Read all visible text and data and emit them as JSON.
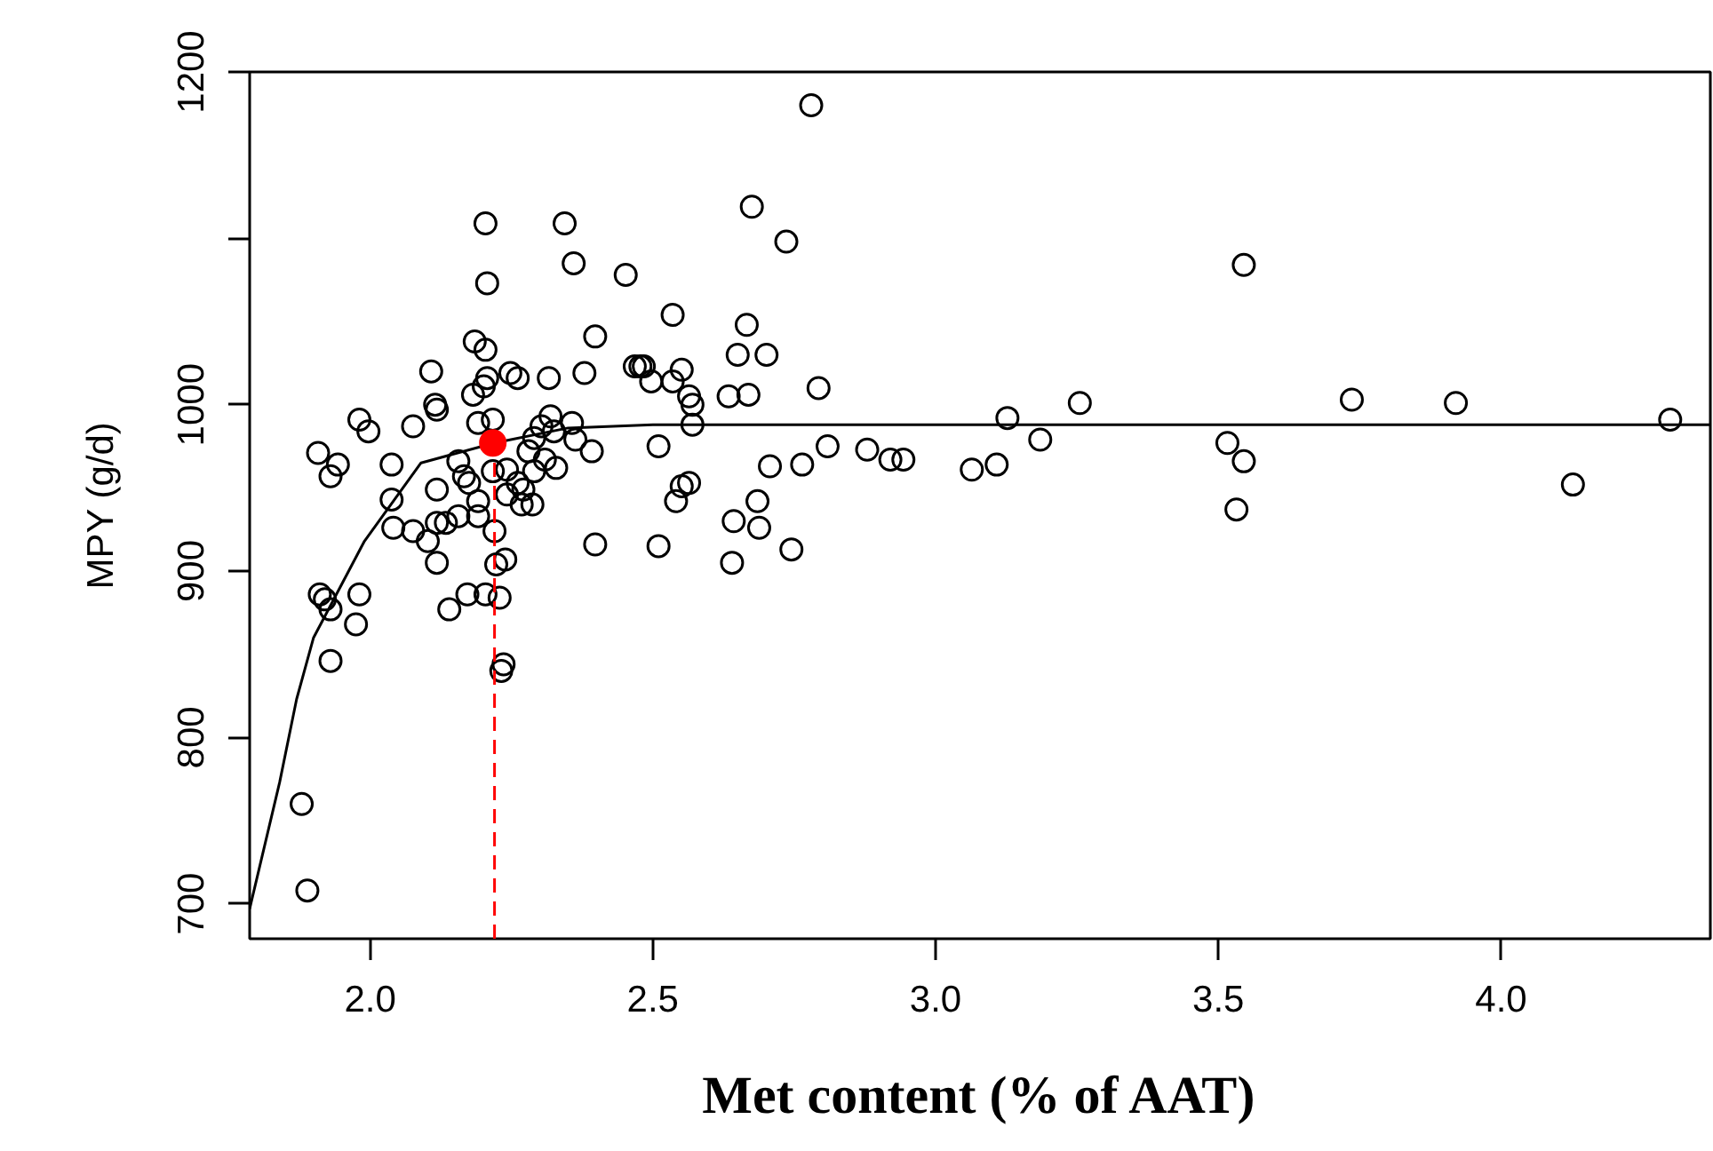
{
  "chart_data": {
    "type": "scatter",
    "xlabel": "Met content (% of AAT)",
    "ylabel": "MPY (g/d)",
    "xlim": [
      1.787,
      4.37
    ],
    "ylim": [
      679,
      1200
    ],
    "xticks": [
      {
        "value": 2.0,
        "label": "2.0"
      },
      {
        "value": 2.5,
        "label": "2.5"
      },
      {
        "value": 3.0,
        "label": "3.0"
      },
      {
        "value": 3.5,
        "label": "3.5"
      },
      {
        "value": 4.0,
        "label": "4.0"
      }
    ],
    "yticks": [
      700,
      800,
      900,
      1000,
      {
        "value": 1100,
        "label": null
      },
      1200
    ],
    "grid": false,
    "series": [
      {
        "marker": "circle",
        "color": "#000000",
        "x": [
          1.879,
          1.889,
          1.908,
          1.911,
          1.92,
          1.93,
          1.93,
          1.93,
          1.943,
          1.981,
          1.975,
          1.981,
          1.997,
          2.038,
          2.038,
          2.041,
          2.076,
          2.076,
          2.102,
          2.108,
          2.115,
          2.118,
          2.118,
          2.118,
          2.118,
          2.134,
          2.14,
          2.156,
          2.156,
          2.166,
          2.172,
          2.175,
          2.191,
          2.191,
          2.204,
          2.185,
          2.182,
          2.201,
          2.191,
          2.204,
          2.207,
          2.204,
          2.207,
          2.217,
          2.217,
          2.22,
          2.223,
          2.229,
          2.232,
          2.236,
          2.239,
          2.242,
          2.242,
          2.261,
          2.248,
          2.261,
          2.268,
          2.271,
          2.28,
          2.287,
          2.29,
          2.29,
          2.303,
          2.309,
          2.316,
          2.319,
          2.329,
          2.325,
          2.344,
          2.36,
          2.357,
          2.363,
          2.379,
          2.392,
          2.398,
          2.398,
          2.452,
          2.468,
          2.478,
          2.484,
          2.497,
          2.51,
          2.51,
          2.535,
          2.535,
          2.541,
          2.551,
          2.551,
          2.564,
          2.564,
          2.57,
          2.57,
          2.634,
          2.64,
          2.643,
          2.65,
          2.666,
          2.669,
          2.675,
          2.685,
          2.688,
          2.701,
          2.707,
          2.736,
          2.745,
          2.764,
          2.78,
          2.793,
          2.809,
          2.879,
          2.92,
          2.943,
          3.064,
          3.108,
          3.127,
          3.185,
          3.255,
          3.516,
          3.532,
          3.545,
          3.545,
          3.736,
          3.92,
          4.127,
          4.299
        ],
        "values": [
          760,
          708,
          971,
          886,
          883,
          877,
          846,
          957,
          964,
          886,
          868,
          991,
          984,
          964,
          943,
          926,
          987,
          924,
          918,
          1020,
          1000,
          997,
          949,
          905,
          929,
          929,
          877,
          933,
          966,
          957,
          886,
          953,
          933,
          942,
          886,
          1038,
          1006,
          1011,
          989,
          1109,
          1073,
          1033,
          1016,
          991,
          960,
          924,
          904,
          884,
          840,
          844,
          907,
          946,
          961,
          953,
          1019,
          1016,
          940,
          949,
          972,
          940,
          960,
          980,
          987,
          967,
          1016,
          993,
          962,
          984,
          1109,
          1085,
          989,
          979,
          1019,
          972,
          1041,
          916,
          1078,
          1023,
          1023,
          1023,
          1014,
          975,
          915,
          1014,
          1054,
          942,
          1021,
          951,
          953,
          1005,
          988,
          1000,
          1005,
          905,
          930,
          1030,
          1048,
          1006,
          1119,
          942,
          926,
          1030,
          963,
          1098,
          913,
          964,
          1180,
          1010,
          975,
          973,
          967,
          967,
          961,
          964,
          992,
          979,
          1001,
          977,
          937,
          966,
          1084,
          1003,
          1001,
          952,
          991
        ]
      },
      {
        "type": "line",
        "marker": "none",
        "line_style": "solid",
        "color": "#000000",
        "x": [
          1.787,
          1.84,
          1.87,
          1.9,
          1.99,
          2.09,
          2.22,
          2.35,
          2.5,
          4.37
        ],
        "values": [
          697,
          773,
          823,
          860,
          918,
          965,
          977,
          986,
          988,
          988
        ]
      },
      {
        "marker": "circle",
        "color": "#ff0000",
        "x": [
          2.217
        ],
        "values": [
          977
        ]
      },
      {
        "type": "line",
        "marker": "none",
        "line_style": "dashed",
        "color": "#ff0000",
        "x": [
          2.22,
          2.22
        ],
        "values": [
          679,
          977
        ]
      }
    ]
  }
}
